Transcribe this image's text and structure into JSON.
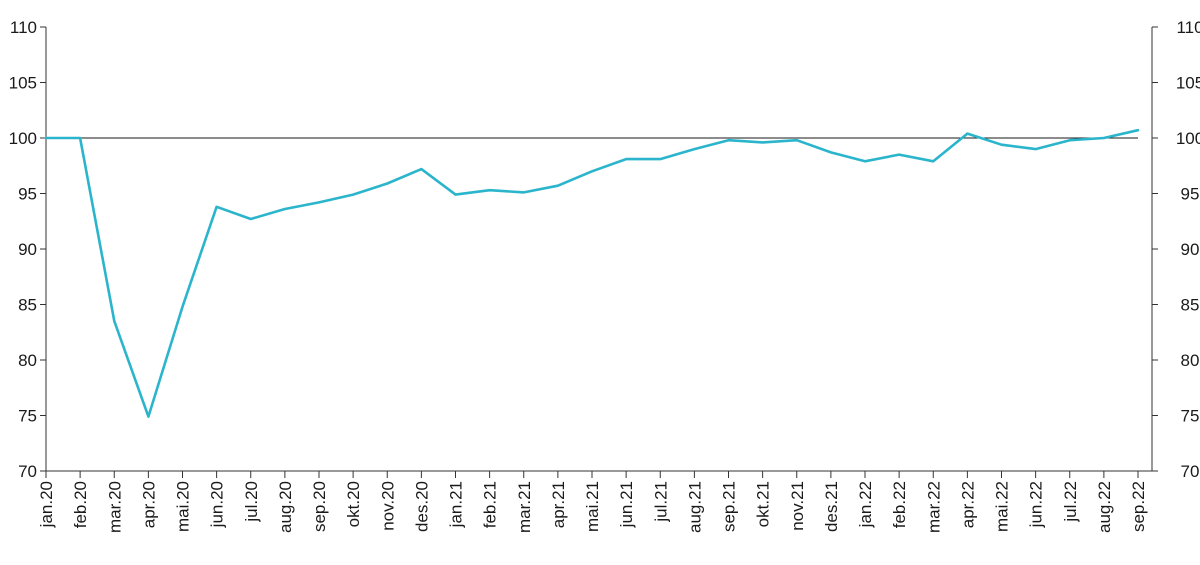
{
  "chart_data": {
    "type": "line",
    "title": "",
    "xlabel": "",
    "ylabel": "",
    "ylim": [
      70,
      110
    ],
    "yticks": [
      70,
      75,
      80,
      85,
      90,
      95,
      100,
      105,
      110
    ],
    "y_axis_sides": [
      "left",
      "right"
    ],
    "reference_line": 100,
    "grid": false,
    "legend": "none",
    "categories": [
      "jan.20",
      "feb.20",
      "mar.20",
      "apr.20",
      "mai.20",
      "jun.20",
      "jul.20",
      "aug.20",
      "sep.20",
      "okt.20",
      "nov.20",
      "des.20",
      "jan.21",
      "feb.21",
      "mar.21",
      "apr.21",
      "mai.21",
      "jun.21",
      "jul.21",
      "aug.21",
      "sep.21",
      "okt.21",
      "nov.21",
      "des.21",
      "jan.22",
      "feb.22",
      "mar.22",
      "apr.22",
      "mai.22",
      "jun.22",
      "jul.22",
      "aug.22",
      "sep.22"
    ],
    "series": [
      {
        "color": "#2bb5cc",
        "values": [
          100,
          100,
          83.5,
          74.9,
          84.8,
          93.8,
          92.7,
          93.6,
          94.2,
          94.9,
          95.9,
          97.2,
          94.9,
          95.3,
          95.1,
          95.7,
          97.0,
          98.1,
          98.1,
          99.0,
          99.8,
          99.6,
          99.8,
          98.7,
          97.9,
          98.5,
          97.9,
          100.4,
          99.4,
          99.0,
          99.8,
          100.0,
          100.7
        ]
      }
    ]
  }
}
